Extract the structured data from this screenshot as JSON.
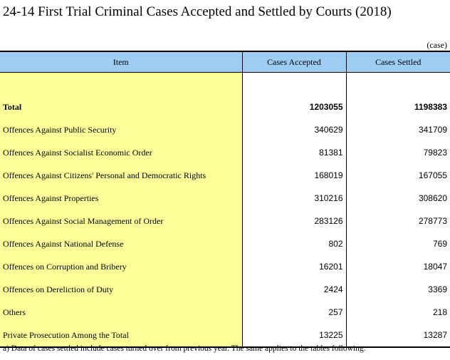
{
  "title": "24-14  First Trial Criminal Cases Accepted and Settled by Courts (2018)",
  "unit": "(case)",
  "table": {
    "headers": [
      "Item",
      "Cases Accepted",
      "Cases Settled"
    ],
    "rows": [
      {
        "item": "Total",
        "accepted": "1203055",
        "settled": "1198383"
      },
      {
        "item": "Offences Against Public Security",
        "accepted": "340629",
        "settled": "341709"
      },
      {
        "item": "Offences Against Socialist Economic Order",
        "accepted": "81381",
        "settled": "79823"
      },
      {
        "item": "Offences Against Citizens' Personal and Democratic Rights",
        "accepted": "168019",
        "settled": "167055"
      },
      {
        "item": "Offences Against Properties",
        "accepted": "310216",
        "settled": "308620"
      },
      {
        "item": "Offences Against Social Management of Order",
        "accepted": "283126",
        "settled": "278773"
      },
      {
        "item": "Offences Against National Defense",
        "accepted": "802",
        "settled": "769"
      },
      {
        "item": "Offences on Corruption and Bribery",
        "accepted": "16201",
        "settled": "18047"
      },
      {
        "item": "Offences on Dereliction of Duty",
        "accepted": "2424",
        "settled": "3369"
      },
      {
        "item": "Others",
        "accepted": "257",
        "settled": "218"
      },
      {
        "item": "Private Prosecution Among the Total",
        "accepted": "13225",
        "settled": "13287"
      }
    ]
  },
  "note": "a) Data of cases settled include cases turned over from previous year. The same applies to the tables following.",
  "colors": {
    "header_bg": "#9dcdf2",
    "item_bg": "#ffff99"
  }
}
